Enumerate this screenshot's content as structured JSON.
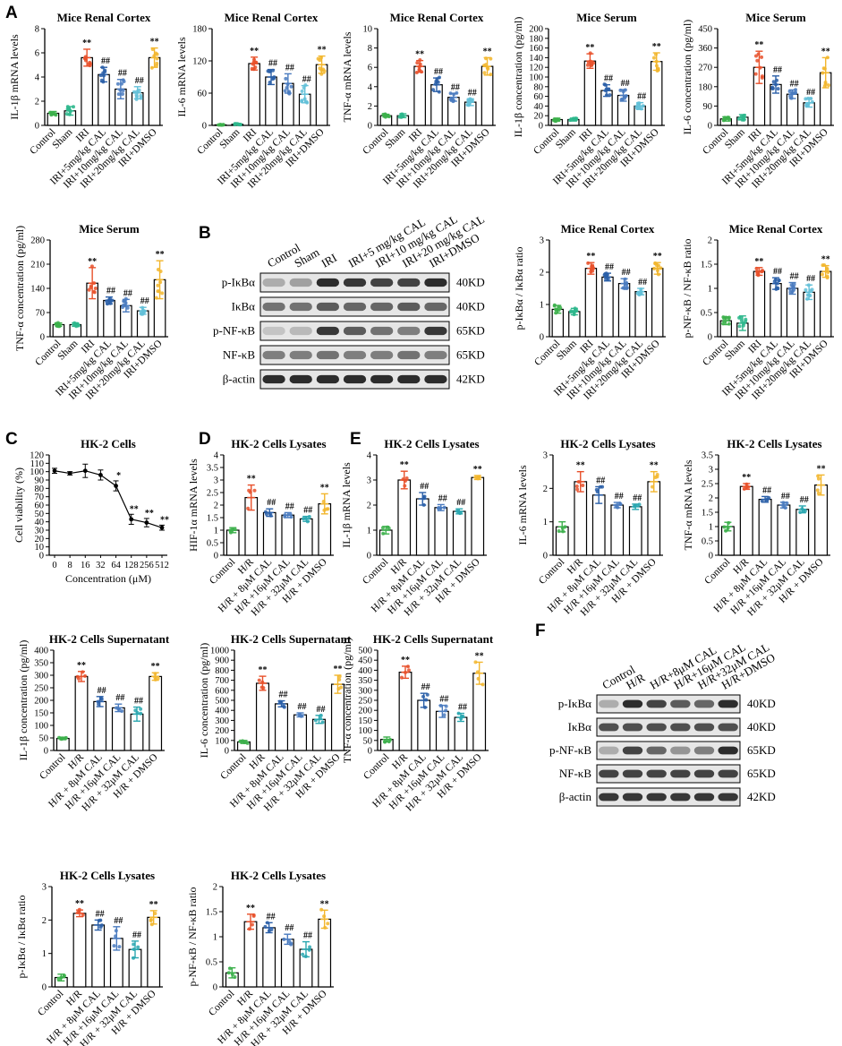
{
  "figure": {
    "panel_labels": [
      "A",
      "B",
      "C",
      "D",
      "E",
      "F"
    ],
    "colors": {
      "control": "#3cb04b",
      "sham": "#2db78c",
      "h1": "#e8502a",
      "h2": "#2a5fa8",
      "h3": "#4a7bbf",
      "h4": "#2aa7b0",
      "h5": "#62c0d8",
      "h6": "#f2b62d"
    }
  },
  "chart_data": [
    {
      "id": "A1",
      "type": "bar",
      "title": "Mice Renal Cortex",
      "ylabel": "IL-1β mRNA levels",
      "ylim": [
        0,
        8
      ],
      "ticks": [
        0,
        2,
        4,
        6,
        8
      ],
      "categories": [
        "Control",
        "Sham",
        "IRI",
        "IRI+5mg/kg CAL",
        "IRI+10mg/kg CAL",
        "IRI+20mg/kg CAL",
        "IRI+DMSO"
      ],
      "values": [
        1.0,
        1.2,
        5.6,
        4.2,
        3.0,
        2.7,
        5.6
      ],
      "errors": [
        0.15,
        0.35,
        0.7,
        0.6,
        0.8,
        0.5,
        0.8
      ],
      "annotations": [
        "",
        "",
        "**",
        "##",
        "##",
        "##",
        "**"
      ]
    },
    {
      "id": "A2",
      "type": "bar",
      "title": "Mice Renal Cortex",
      "ylabel": "IL-6 mRNA levels",
      "ylim": [
        0,
        180
      ],
      "ticks": [
        0,
        60,
        120,
        180
      ],
      "categories": [
        "Control",
        "Sham",
        "IRI",
        "IRI+5mg/kg CAL",
        "IRI+10mg/kg CAL",
        "IRI+20mg/kg CAL",
        "IRI+DMSO"
      ],
      "values": [
        1,
        2,
        115,
        90,
        78,
        58,
        113
      ],
      "errors": [
        0.5,
        1,
        12,
        14,
        18,
        16,
        16
      ],
      "annotations": [
        "",
        "",
        "**",
        "##",
        "##",
        "##",
        "**"
      ]
    },
    {
      "id": "A3",
      "type": "bar",
      "title": "Mice Renal Cortex",
      "ylabel": "TNF-α mRNA levels",
      "ylim": [
        0,
        10
      ],
      "ticks": [
        0,
        2,
        4,
        6,
        8,
        10
      ],
      "categories": [
        "Control",
        "Sham",
        "IRI",
        "IRI+5mg/kg CAL",
        "IRI+10mg/kg CAL",
        "IRI+20mg/kg CAL",
        "IRI+DMSO"
      ],
      "values": [
        1.0,
        1.0,
        6.1,
        4.2,
        2.9,
        2.4,
        6.1
      ],
      "errors": [
        0.15,
        0.2,
        0.6,
        0.7,
        0.4,
        0.35,
        0.9
      ],
      "annotations": [
        "",
        "",
        "**",
        "##",
        "##",
        "##",
        "**"
      ]
    },
    {
      "id": "A4",
      "type": "bar",
      "title": "Mice Serum",
      "ylabel": "IL-1β concentration (pg/ml)",
      "ylim": [
        0,
        200
      ],
      "ticks": [
        0,
        20,
        40,
        60,
        80,
        100,
        120,
        140,
        160,
        180,
        200
      ],
      "categories": [
        "Control",
        "Sham",
        "IRI",
        "IRI+5mg/kg CAL",
        "IRI+10mg/kg CAL",
        "IRI+20mg/kg CAL",
        "IRI+DMSO"
      ],
      "values": [
        12,
        12,
        133,
        72,
        62,
        40,
        132
      ],
      "errors": [
        3,
        3,
        15,
        12,
        12,
        7,
        18
      ],
      "annotations": [
        "",
        "",
        "**",
        "##",
        "##",
        "##",
        "**"
      ]
    },
    {
      "id": "A5",
      "type": "bar",
      "title": "Mice Serum",
      "ylabel": "IL-6 concentration (pg/ml)",
      "ylim": [
        0,
        450
      ],
      "ticks": [
        0,
        90,
        180,
        270,
        360,
        450
      ],
      "categories": [
        "Control",
        "Sham",
        "IRI",
        "IRI+5mg/kg CAL",
        "IRI+10mg/kg CAL",
        "IRI+20mg/kg CAL",
        "IRI+DMSO"
      ],
      "values": [
        30,
        38,
        270,
        190,
        145,
        105,
        245
      ],
      "errors": [
        10,
        12,
        75,
        40,
        20,
        20,
        70
      ],
      "annotations": [
        "",
        "",
        "**",
        "##",
        "##",
        "##",
        "**"
      ]
    },
    {
      "id": "A6",
      "type": "bar",
      "title": "Mice Serum",
      "ylabel": "TNF-α concentration (pg/ml)",
      "ylim": [
        0,
        280
      ],
      "ticks": [
        0,
        70,
        140,
        210,
        280
      ],
      "categories": [
        "Control",
        "Sham",
        "IRI",
        "IRI+5mg/kg CAL",
        "IRI+10mg/kg CAL",
        "IRI+20mg/kg CAL",
        "IRI+DMSO"
      ],
      "values": [
        35,
        35,
        155,
        105,
        90,
        75,
        165
      ],
      "errors": [
        5,
        5,
        45,
        10,
        18,
        10,
        55
      ],
      "annotations": [
        "",
        "",
        "**",
        "##",
        "##",
        "##",
        "**"
      ]
    },
    {
      "id": "B1",
      "type": "bar",
      "title": "Mice Renal Cortex",
      "ylabel": "p-IκBα / IκBα ratio",
      "ylim": [
        0,
        3
      ],
      "ticks": [
        0,
        1,
        2,
        3
      ],
      "categories": [
        "Control",
        "Sham",
        "IRI",
        "IRI+5mg/kg CAL",
        "IRI+10mg/kg CAL",
        "IRI+20mg/kg CAL",
        "IRI+DMSO"
      ],
      "values": [
        0.85,
        0.78,
        2.12,
        1.85,
        1.65,
        1.4,
        2.12
      ],
      "errors": [
        0.12,
        0.1,
        0.18,
        0.12,
        0.15,
        0.1,
        0.18
      ],
      "annotations": [
        "",
        "",
        "**",
        "##",
        "##",
        "##",
        "**"
      ]
    },
    {
      "id": "B2",
      "type": "bar",
      "title": "Mice Renal Cortex",
      "ylabel": "p-NF-κB / NF-κB ratio",
      "ylim": [
        0,
        2.0
      ],
      "ticks": [
        0,
        0.5,
        1.0,
        1.5,
        2.0
      ],
      "categories": [
        "Control",
        "Sham",
        "IRI",
        "IRI+5mg/kg CAL",
        "IRI+10mg/kg CAL",
        "IRI+20mg/kg CAL",
        "IRI+DMSO"
      ],
      "values": [
        0.33,
        0.28,
        1.35,
        1.1,
        1.0,
        0.92,
        1.35
      ],
      "errors": [
        0.08,
        0.15,
        0.08,
        0.12,
        0.12,
        0.15,
        0.12
      ],
      "annotations": [
        "",
        "",
        "**",
        "##",
        "##",
        "##",
        "**"
      ]
    },
    {
      "id": "C",
      "type": "line",
      "title": "HK-2 Cells",
      "ylabel": "Cell viability (%)",
      "xlabel": "Concentration (μM)",
      "ylim": [
        0,
        120
      ],
      "ticks": [
        0,
        10,
        20,
        30,
        40,
        50,
        60,
        70,
        80,
        90,
        100,
        110,
        120
      ],
      "x": [
        "0",
        "8",
        "16",
        "32",
        "64",
        "128",
        "256",
        "512"
      ],
      "values": [
        101,
        98,
        101,
        96,
        83,
        43,
        39,
        33
      ],
      "errors": [
        3,
        2,
        8,
        6,
        6,
        6,
        5,
        3
      ],
      "annotations": [
        "",
        "",
        "",
        "",
        "*",
        "**",
        "**",
        "**"
      ]
    },
    {
      "id": "D",
      "type": "bar",
      "title": "HK-2 Cells Lysates",
      "ylabel": "HIF-1α mRNA levels",
      "ylim": [
        0,
        4
      ],
      "ticks": [
        0,
        0.5,
        1,
        1.5,
        2,
        2.5,
        3,
        3.5,
        4
      ],
      "categories": [
        "Control",
        "H/R",
        "H/R + 8μM CAL",
        "H/R +16μM CAL",
        "H/R + 32μM CAL",
        "H/R + DMSO"
      ],
      "values": [
        1.0,
        2.3,
        1.7,
        1.6,
        1.45,
        2.05
      ],
      "errors": [
        0.1,
        0.5,
        0.15,
        0.1,
        0.1,
        0.4
      ],
      "annotations": [
        "",
        "**",
        "##",
        "##",
        "##",
        "**"
      ]
    },
    {
      "id": "E1",
      "type": "bar",
      "title": "HK-2 Cells Lysates",
      "ylabel": "IL-1β mRNA levels",
      "ylim": [
        0,
        4
      ],
      "ticks": [
        0,
        1,
        2,
        3,
        4
      ],
      "categories": [
        "Control",
        "H/R",
        "H/R + 8μM CAL",
        "H/R +16μM CAL",
        "H/R + 32μM CAL",
        "H/R + DMSO"
      ],
      "values": [
        1.0,
        3.0,
        2.25,
        1.9,
        1.75,
        3.1
      ],
      "errors": [
        0.15,
        0.35,
        0.25,
        0.12,
        0.1,
        0.08
      ],
      "annotations": [
        "",
        "**",
        "##",
        "##",
        "##",
        "**"
      ]
    },
    {
      "id": "E2",
      "type": "bar",
      "title": "HK-2 Cells Lysates",
      "ylabel": "IL-6 mRNA levels",
      "ylim": [
        0,
        3
      ],
      "ticks": [
        0,
        1,
        2,
        3
      ],
      "categories": [
        "Control",
        "H/R",
        "H/R + 8μM CAL",
        "H/R +16μM CAL",
        "H/R + 32μM CAL",
        "H/R + DMSO"
      ],
      "values": [
        0.85,
        2.2,
        1.8,
        1.5,
        1.45,
        2.2
      ],
      "errors": [
        0.15,
        0.3,
        0.25,
        0.08,
        0.08,
        0.3
      ],
      "annotations": [
        "",
        "**",
        "##",
        "##",
        "##",
        "**"
      ]
    },
    {
      "id": "E3",
      "type": "bar",
      "title": "HK-2 Cells Lysates",
      "ylabel": "TNF-α mRNA levels",
      "ylim": [
        0,
        3.5
      ],
      "ticks": [
        0,
        0.5,
        1,
        1.5,
        2,
        2.5,
        3,
        3.5
      ],
      "categories": [
        "Control",
        "H/R",
        "H/R + 8μM CAL",
        "H/R +16μM CAL",
        "H/R + 32μM CAL",
        "H/R + DMSO"
      ],
      "values": [
        1.0,
        2.4,
        1.95,
        1.75,
        1.6,
        2.45
      ],
      "errors": [
        0.15,
        0.1,
        0.1,
        0.1,
        0.12,
        0.35
      ],
      "annotations": [
        "",
        "**",
        "##",
        "##",
        "##",
        "**"
      ]
    },
    {
      "id": "E4",
      "type": "bar",
      "title": "HK-2 Cells Supernatant",
      "ylabel": "IL-1β concentration (pg/ml)",
      "ylim": [
        0,
        400
      ],
      "ticks": [
        0,
        50,
        100,
        150,
        200,
        250,
        300,
        350,
        400
      ],
      "categories": [
        "Control",
        "H/R",
        "H/R + 8μM CAL",
        "H/R +16μM CAL",
        "H/R + 32μM CAL",
        "H/R + DMSO"
      ],
      "values": [
        48,
        295,
        195,
        170,
        145,
        295
      ],
      "errors": [
        5,
        20,
        20,
        15,
        28,
        15
      ],
      "annotations": [
        "",
        "**",
        "##",
        "##",
        "##",
        "**"
      ]
    },
    {
      "id": "E5",
      "type": "bar",
      "title": "HK-2 Cells Supernatant",
      "ylabel": "IL-6 concentration (pg/ml)",
      "ylim": [
        0,
        1000
      ],
      "ticks": [
        0,
        100,
        200,
        300,
        400,
        500,
        600,
        700,
        800,
        900,
        1000
      ],
      "categories": [
        "Control",
        "H/R",
        "H/R + 8μM CAL",
        "H/R +16μM CAL",
        "H/R + 32μM CAL",
        "H/R + DMSO"
      ],
      "values": [
        85,
        670,
        465,
        355,
        310,
        660
      ],
      "errors": [
        15,
        70,
        30,
        20,
        40,
        90
      ],
      "annotations": [
        "",
        "**",
        "##",
        "##",
        "##",
        "**"
      ]
    },
    {
      "id": "E6",
      "type": "bar",
      "title": "HK-2 Cells Supernatant",
      "ylabel": "TNF-α concentration (pg/ml)",
      "ylim": [
        0,
        500
      ],
      "ticks": [
        0,
        50,
        100,
        150,
        200,
        250,
        300,
        350,
        400,
        450,
        500
      ],
      "categories": [
        "Control",
        "H/R",
        "H/R + 8μM CAL",
        "H/R +16μM CAL",
        "H/R + 32μM CAL",
        "H/R + DMSO"
      ],
      "values": [
        55,
        390,
        250,
        195,
        165,
        385
      ],
      "errors": [
        12,
        30,
        35,
        30,
        20,
        55
      ],
      "annotations": [
        "",
        "**",
        "##",
        "##",
        "##",
        "**"
      ]
    },
    {
      "id": "E7",
      "type": "bar",
      "title": "HK-2 Cells Lysates",
      "ylabel": "p-IκBα / IκBα ratio",
      "ylim": [
        0,
        3
      ],
      "ticks": [
        0,
        1,
        2,
        3
      ],
      "categories": [
        "Control",
        "H/R",
        "H/R + 8μM CAL",
        "H/R +16μM CAL",
        "H/R + 32μM CAL",
        "H/R + DMSO"
      ],
      "values": [
        0.28,
        2.2,
        1.85,
        1.45,
        1.12,
        2.08
      ],
      "errors": [
        0.1,
        0.1,
        0.15,
        0.35,
        0.25,
        0.2
      ],
      "annotations": [
        "",
        "**",
        "##",
        "##",
        "##",
        "**"
      ]
    },
    {
      "id": "E8",
      "type": "bar",
      "title": "HK-2 Cells Lysates",
      "ylabel": "p-NF-κB / NF-κB ratio",
      "ylim": [
        0,
        2.0
      ],
      "ticks": [
        0,
        0.5,
        1.0,
        1.5,
        2.0
      ],
      "categories": [
        "Control",
        "H/R",
        "H/R + 8μM CAL",
        "H/R +16μM CAL",
        "H/R + 32μM CAL",
        "H/R + DMSO"
      ],
      "values": [
        0.28,
        1.3,
        1.18,
        0.95,
        0.75,
        1.35
      ],
      "errors": [
        0.1,
        0.15,
        0.1,
        0.1,
        0.15,
        0.18
      ],
      "annotations": [
        "",
        "**",
        "##",
        "##",
        "##",
        "**"
      ]
    }
  ],
  "blots": {
    "B": {
      "lanes": [
        "Control",
        "Sham",
        "IRI",
        "IRI+5 mg/kg CAL",
        "IRI+10 mg/kg CAL",
        "IRI+20 mg/kg CAL",
        "IRI+DMSO"
      ],
      "rows": [
        {
          "label": "p-IκBα",
          "kd": "40KD",
          "intensity": [
            0.35,
            0.4,
            0.9,
            0.85,
            0.8,
            0.8,
            0.9
          ]
        },
        {
          "label": "IκBα",
          "kd": "40KD",
          "intensity": [
            0.6,
            0.6,
            0.7,
            0.65,
            0.65,
            0.7,
            0.65
          ]
        },
        {
          "label": "p-NF-κB",
          "kd": "65KD",
          "intensity": [
            0.25,
            0.3,
            0.85,
            0.7,
            0.6,
            0.55,
            0.85
          ]
        },
        {
          "label": "NF-κB",
          "kd": "65KD",
          "intensity": [
            0.55,
            0.55,
            0.6,
            0.55,
            0.55,
            0.6,
            0.55
          ]
        },
        {
          "label": "β-actin",
          "kd": "42KD",
          "intensity": [
            0.9,
            0.9,
            0.9,
            0.9,
            0.9,
            0.9,
            0.9
          ]
        }
      ]
    },
    "F": {
      "lanes": [
        "Control",
        "H/R",
        "H/R+8μM CAL",
        "H/R+16μM CAL",
        "H/R+32μM CAL",
        "H/R+DMSO"
      ],
      "rows": [
        {
          "label": "p-IκBα",
          "kd": "40KD",
          "intensity": [
            0.35,
            0.9,
            0.8,
            0.7,
            0.65,
            0.9
          ]
        },
        {
          "label": "IκBα",
          "kd": "40KD",
          "intensity": [
            0.75,
            0.75,
            0.75,
            0.75,
            0.75,
            0.75
          ]
        },
        {
          "label": "p-NF-κB",
          "kd": "65KD",
          "intensity": [
            0.35,
            0.8,
            0.65,
            0.45,
            0.55,
            0.9
          ]
        },
        {
          "label": "NF-κB",
          "kd": "65KD",
          "intensity": [
            0.8,
            0.8,
            0.8,
            0.8,
            0.8,
            0.8
          ]
        },
        {
          "label": "β-actin",
          "kd": "42KD",
          "intensity": [
            0.85,
            0.85,
            0.85,
            0.85,
            0.85,
            0.85
          ]
        }
      ]
    }
  }
}
